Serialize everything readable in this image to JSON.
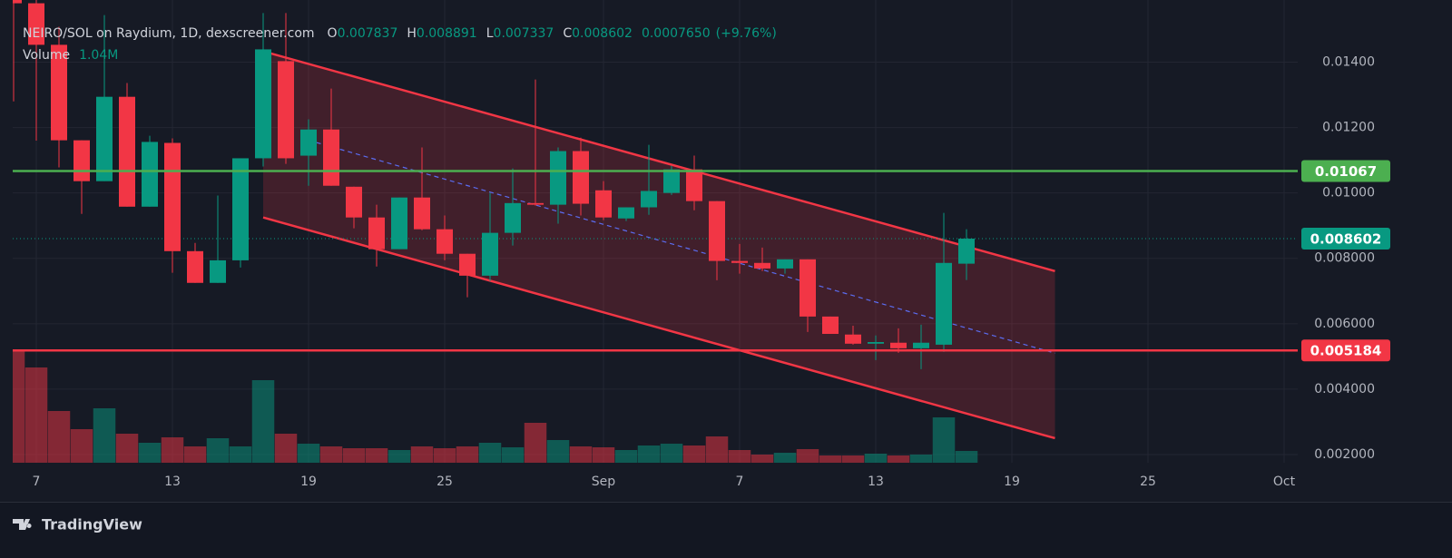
{
  "chart_data": {
    "type": "candlestick",
    "title": "NEIRO/SOL on Raydium, 1D, dexscreener.com",
    "ohlc_labels": [
      "O",
      "H",
      "L",
      "C"
    ],
    "change": "0.0007650",
    "change_pct": "(+9.76%)",
    "volume_title": "Volume",
    "volume_label": "1.04M",
    "x": [
      -1,
      0,
      1,
      2,
      3,
      4,
      5,
      6,
      7,
      8,
      9,
      10,
      11,
      12,
      13,
      14,
      15,
      16,
      17,
      18,
      19,
      20,
      21,
      22,
      23,
      24,
      25,
      26,
      27,
      28,
      29,
      30,
      31,
      32,
      33,
      34,
      35,
      36,
      37,
      38,
      39,
      40,
      41
    ],
    "open": [
      0.017,
      0.0158,
      0.01453,
      0.01161,
      0.01036,
      0.01294,
      0.00958,
      0.01153,
      0.00822,
      0.00725,
      0.00794,
      0.01106,
      0.01403,
      0.01114,
      0.01194,
      0.01019,
      0.00925,
      0.00828,
      0.00986,
      0.00889,
      0.00814,
      0.00747,
      0.00878,
      0.00969,
      0.00964,
      0.01128,
      0.01008,
      0.00922,
      0.00956,
      0.01,
      0.01072,
      0.00975,
      0.00792,
      0.00786,
      0.00769,
      0.00797,
      0.00622,
      0.00567,
      0.00539,
      0.00542,
      0.00525,
      0.00536,
      0.007837
    ],
    "high": [
      0.0175,
      0.0162,
      0.01508,
      0.01161,
      0.01544,
      0.01336,
      0.01175,
      0.01167,
      0.00847,
      0.00992,
      0.01106,
      0.0155,
      0.0155,
      0.01225,
      0.01319,
      0.01019,
      0.00964,
      0.00986,
      0.01139,
      0.00931,
      0.00814,
      0.01,
      0.01075,
      0.01347,
      0.01139,
      0.01169,
      0.01036,
      0.00956,
      0.01147,
      0.01083,
      0.01114,
      0.00975,
      0.00844,
      0.00833,
      0.00797,
      0.00797,
      0.00622,
      0.00594,
      0.00564,
      0.00586,
      0.00597,
      0.00939,
      0.008891
    ],
    "low": [
      0.0128,
      0.0116,
      0.01078,
      0.00936,
      0.01036,
      0.00958,
      0.00958,
      0.00756,
      0.00725,
      0.00725,
      0.00772,
      0.01081,
      0.01089,
      0.01022,
      0.01022,
      0.00892,
      0.00775,
      0.00828,
      0.00886,
      0.00794,
      0.00681,
      0.00731,
      0.00839,
      0.00961,
      0.00906,
      0.00931,
      0.00917,
      0.00914,
      0.00933,
      0.00994,
      0.00947,
      0.00733,
      0.00753,
      0.00761,
      0.00753,
      0.00575,
      0.00569,
      0.00536,
      0.00489,
      0.00511,
      0.00461,
      0.00514,
      0.007337
    ],
    "close": [
      0.0158,
      0.01453,
      0.01161,
      0.01036,
      0.01294,
      0.00958,
      0.01156,
      0.00822,
      0.00725,
      0.00794,
      0.01106,
      0.01439,
      0.01106,
      0.01194,
      0.01022,
      0.00925,
      0.00828,
      0.00986,
      0.00889,
      0.00814,
      0.00747,
      0.00878,
      0.00969,
      0.00964,
      0.01128,
      0.00967,
      0.00925,
      0.00956,
      0.01006,
      0.01072,
      0.00975,
      0.00792,
      0.00786,
      0.00769,
      0.00797,
      0.00622,
      0.00569,
      0.00539,
      0.00544,
      0.00525,
      0.00542,
      0.00786,
      0.008602
    ],
    "volume": [
      10000000,
      8400000,
      4560000,
      2960000,
      4800000,
      2560000,
      1760000,
      2240000,
      1440000,
      2160000,
      1440000,
      7280000,
      2560000,
      1680000,
      1440000,
      1280000,
      1280000,
      1120000,
      1440000,
      1280000,
      1440000,
      1760000,
      1360000,
      3520000,
      2000000,
      1440000,
      1360000,
      1120000,
      1520000,
      1680000,
      1520000,
      2320000,
      1120000,
      720000,
      880000,
      1200000,
      640000,
      640000,
      800000,
      640000,
      720000,
      4000000,
      1040000
    ],
    "up_color": "#089981",
    "down_color": "#f23645",
    "xlim": [
      -1.04,
      55.6
    ],
    "xticks": [
      {
        "value": 0,
        "label": "7"
      },
      {
        "value": 6,
        "label": "13"
      },
      {
        "value": 12,
        "label": "19"
      },
      {
        "value": 18,
        "label": "25"
      },
      {
        "value": 25,
        "label": "Sep"
      },
      {
        "value": 31,
        "label": "7"
      },
      {
        "value": 37,
        "label": "13"
      },
      {
        "value": 43,
        "label": "19"
      },
      {
        "value": 49,
        "label": "25"
      },
      {
        "value": 55,
        "label": "Oct"
      }
    ],
    "ylim": [
      0.00175,
      0.0159
    ],
    "yticks": [
      {
        "value": 0.014,
        "label": "0.01400"
      },
      {
        "value": 0.012,
        "label": "0.01200"
      },
      {
        "value": 0.01,
        "label": "0.01000"
      },
      {
        "value": 0.008,
        "label": "0.008000"
      },
      {
        "value": 0.006,
        "label": "0.006000"
      },
      {
        "value": 0.004,
        "label": "0.004000"
      },
      {
        "value": 0.002,
        "label": "0.002000"
      }
    ],
    "volume_lim": [
      0,
      40800000
    ],
    "grid": true,
    "hlines": [
      {
        "value": 0.01067,
        "color": "#4caf50"
      },
      {
        "value": 0.005184,
        "color": "#f23645"
      }
    ],
    "last_price": 0.008602,
    "channel": {
      "color": "#f23645",
      "upper": [
        [
          10,
          0.01433
        ],
        [
          44.9,
          0.00761
        ]
      ],
      "lower": [
        [
          10,
          0.00925
        ],
        [
          44.9,
          0.0025
        ]
      ],
      "mid": [
        [
          12,
          0.01161
        ],
        [
          44.9,
          0.0051
        ]
      ]
    },
    "brand": "TradingView"
  }
}
